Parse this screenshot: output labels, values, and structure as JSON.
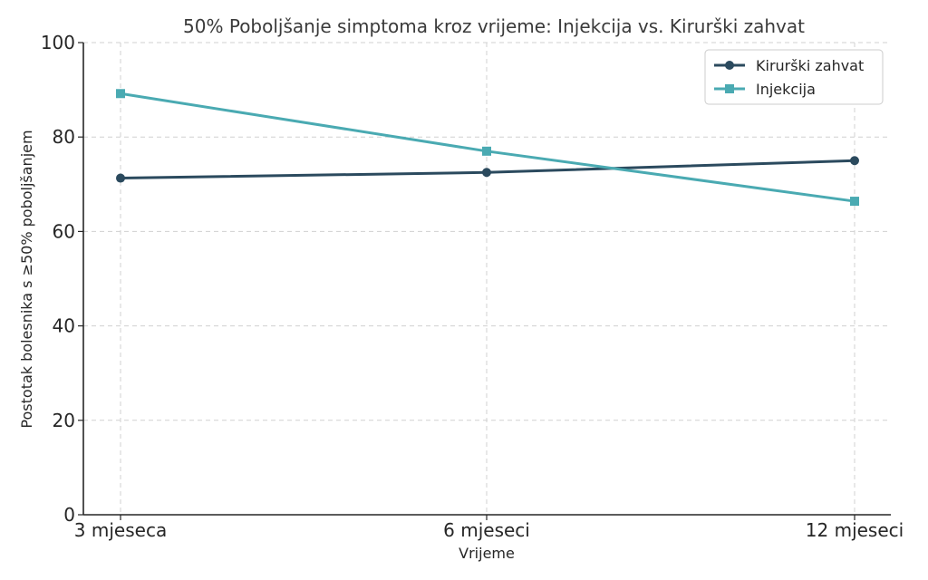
{
  "chart_data": {
    "type": "line",
    "title": "50% Poboljšanje simptoma kroz vrijeme: Injekcija vs. Kirurški zahvat",
    "xlabel": "Vrijeme",
    "ylabel": "Postotak bolesnika s ≥50% poboljšanjem",
    "categories": [
      "3 mjeseca",
      "6 mjeseci",
      "12 mjeseci"
    ],
    "ylim": [
      0,
      100
    ],
    "yticks": [
      0,
      20,
      40,
      60,
      80,
      100
    ],
    "grid": true,
    "legend_position": "top-right",
    "series": [
      {
        "name": "Kirurški zahvat",
        "values": [
          71.3,
          72.5,
          75.0
        ],
        "color": "#2b4a5e",
        "marker": "circle"
      },
      {
        "name": "Injekcija",
        "values": [
          89.2,
          77.0,
          66.4
        ],
        "color": "#4aaab2",
        "marker": "square"
      }
    ]
  }
}
